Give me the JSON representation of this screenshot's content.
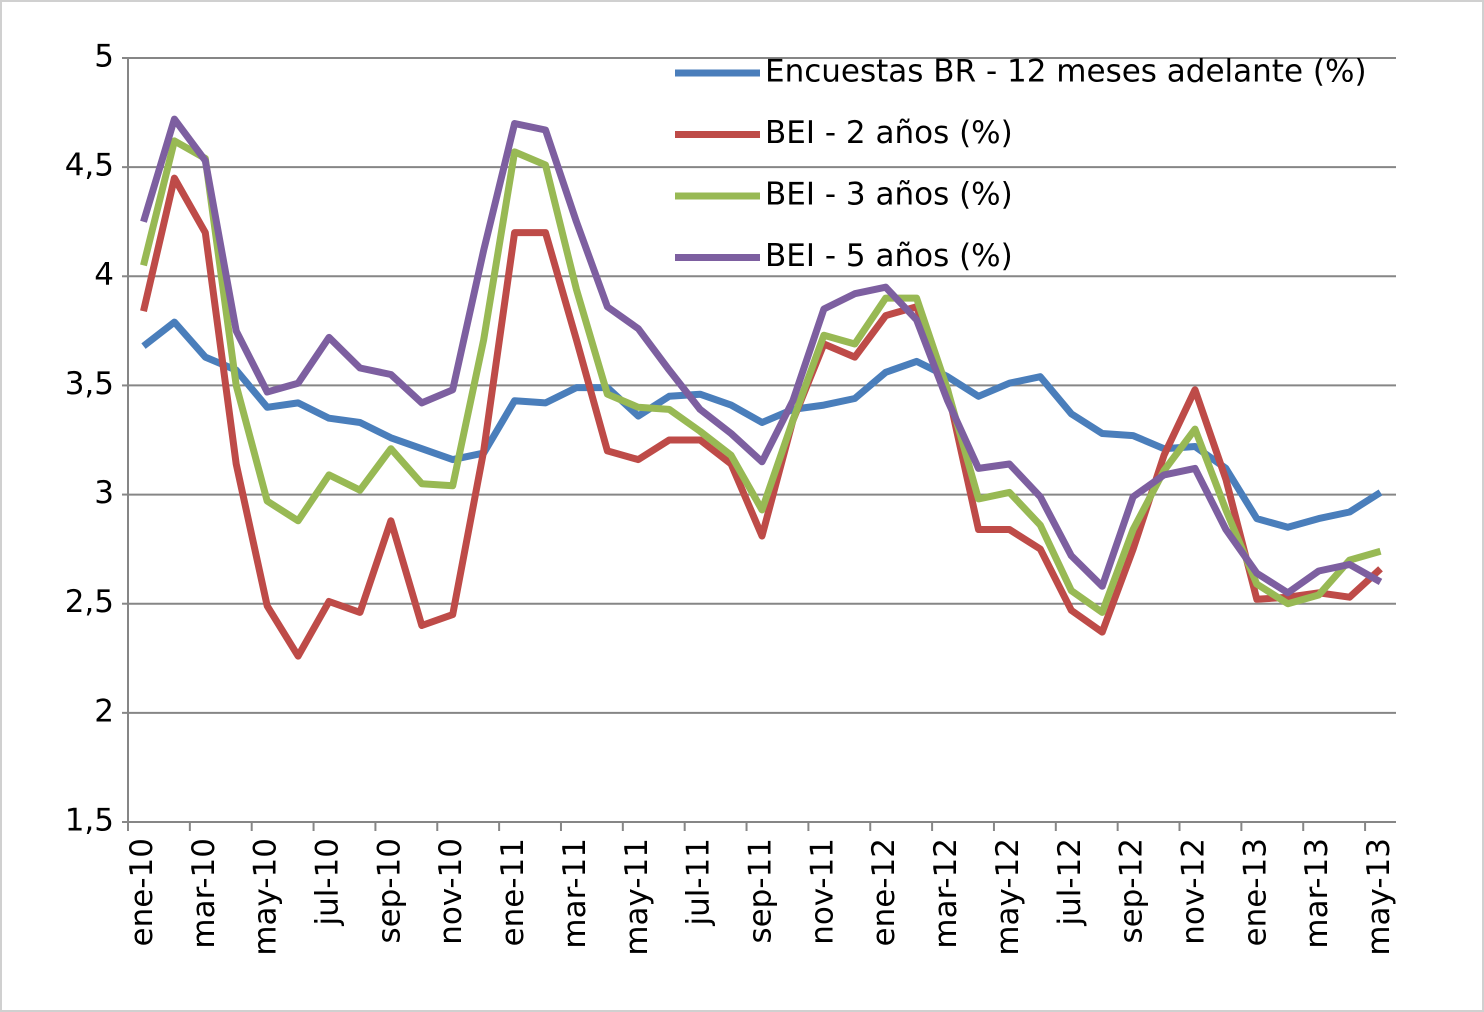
{
  "chart_data": {
    "type": "line",
    "categories": [
      "ene-10",
      null,
      "mar-10",
      null,
      "may-10",
      null,
      "jul-10",
      null,
      "sep-10",
      null,
      "nov-10",
      null,
      "ene-11",
      null,
      "mar-11",
      null,
      "may-11",
      null,
      "jul-11",
      null,
      "sep-11",
      null,
      "nov-11",
      null,
      "ene-12",
      null,
      "mar-12",
      null,
      "may-12",
      null,
      "jul-12",
      null,
      "sep-12",
      null,
      "nov-12",
      null,
      "ene-13",
      null,
      "mar-13",
      null,
      "may-13"
    ],
    "series": [
      {
        "name": "Encuestas BR - 12 meses adelante (%)",
        "color": "#4a7ebb",
        "values": [
          3.68,
          3.79,
          3.63,
          3.57,
          3.4,
          3.42,
          3.35,
          3.33,
          3.26,
          3.21,
          3.16,
          3.19,
          3.43,
          3.42,
          3.49,
          3.49,
          3.36,
          3.45,
          3.46,
          3.41,
          3.33,
          3.39,
          3.41,
          3.44,
          3.56,
          3.61,
          3.54,
          3.45,
          3.51,
          3.54,
          3.37,
          3.28,
          3.27,
          3.21,
          3.22,
          3.12,
          2.89,
          2.85,
          2.89,
          2.92,
          3.01
        ]
      },
      {
        "name": "BEI - 2 años (%)",
        "color": "#be4b48",
        "values": [
          3.84,
          4.45,
          4.2,
          3.14,
          2.49,
          2.26,
          2.51,
          2.46,
          2.88,
          2.4,
          2.45,
          3.2,
          4.2,
          4.2,
          3.71,
          3.2,
          3.16,
          3.25,
          3.25,
          3.14,
          2.81,
          3.34,
          3.69,
          3.63,
          3.82,
          3.86,
          3.48,
          2.84,
          2.84,
          2.75,
          2.47,
          2.37,
          2.75,
          3.18,
          3.48,
          3.07,
          2.52,
          2.53,
          2.55,
          2.53,
          2.66
        ]
      },
      {
        "name": "BEI - 3 años (%)",
        "color": "#98b954",
        "values": [
          4.05,
          4.62,
          4.54,
          3.5,
          2.97,
          2.88,
          3.09,
          3.02,
          3.21,
          3.05,
          3.04,
          3.71,
          4.57,
          4.51,
          3.94,
          3.46,
          3.4,
          3.39,
          3.29,
          3.18,
          2.93,
          3.34,
          3.73,
          3.69,
          3.9,
          3.9,
          3.48,
          2.98,
          3.01,
          2.86,
          2.56,
          2.46,
          2.84,
          3.11,
          3.3,
          2.93,
          2.59,
          2.5,
          2.54,
          2.7,
          2.74
        ]
      },
      {
        "name": "BEI - 5 años (%)",
        "color": "#7d5fa0",
        "values": [
          4.25,
          4.72,
          4.53,
          3.75,
          3.47,
          3.51,
          3.72,
          3.58,
          3.55,
          3.42,
          3.48,
          4.12,
          4.7,
          4.67,
          4.25,
          3.86,
          3.76,
          3.57,
          3.39,
          3.28,
          3.15,
          3.43,
          3.85,
          3.92,
          3.95,
          3.8,
          3.43,
          3.12,
          3.14,
          2.99,
          2.72,
          2.58,
          2.99,
          3.09,
          3.12,
          2.84,
          2.64,
          2.55,
          2.65,
          2.68,
          2.6
        ]
      }
    ],
    "ylim": [
      1.5,
      5
    ],
    "yticks": [
      {
        "value": 1.5,
        "label": "1,5"
      },
      2,
      {
        "value": 2.5,
        "label": "2,5"
      },
      3,
      {
        "value": 3.5,
        "label": "3,5"
      },
      4,
      {
        "value": 4.5,
        "label": "4,5"
      },
      5
    ],
    "grid": true
  }
}
